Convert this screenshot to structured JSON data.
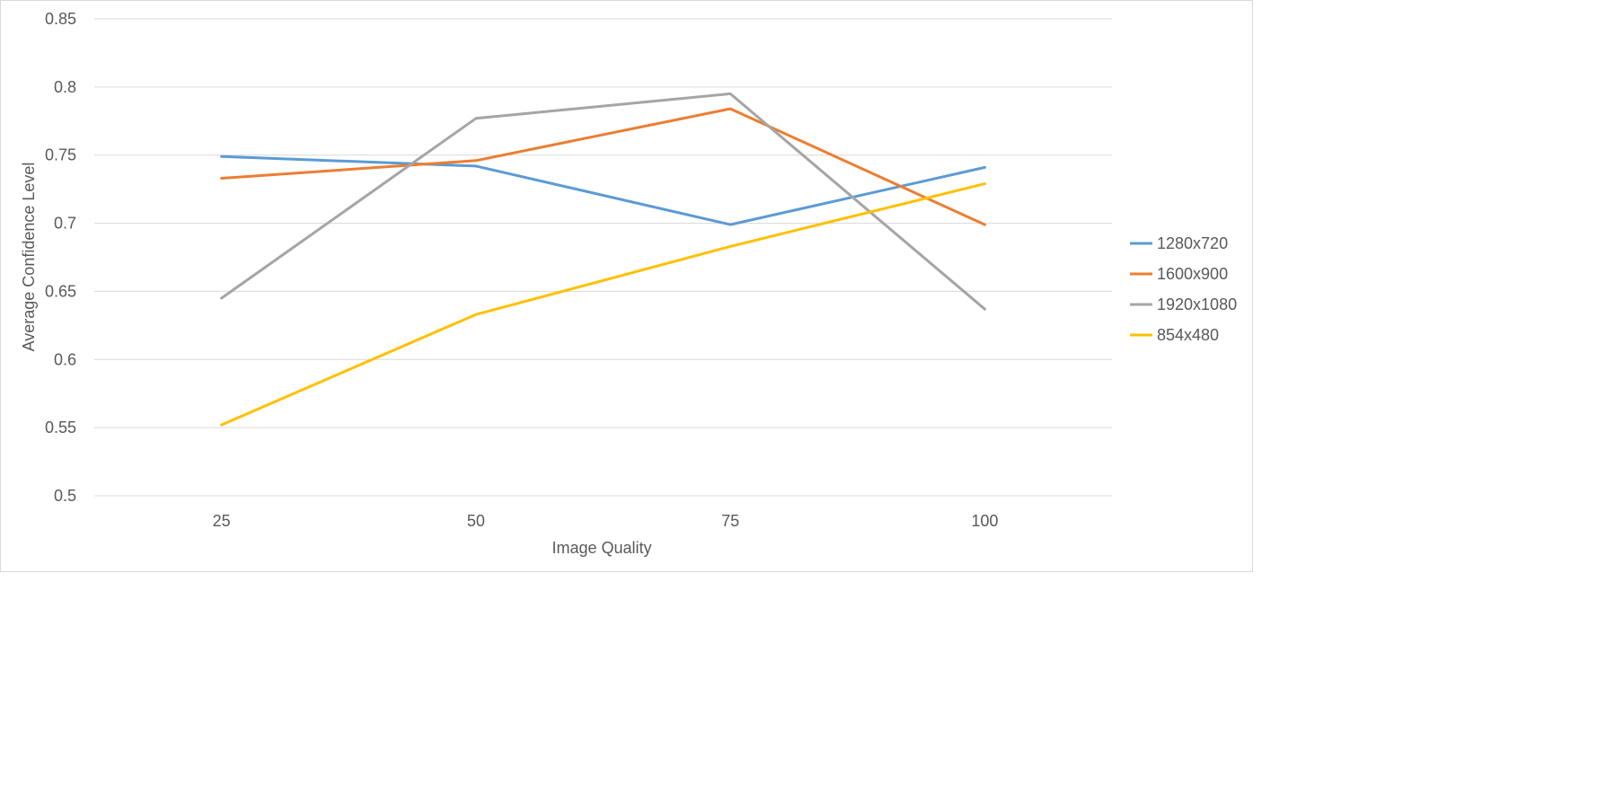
{
  "chart_data": {
    "type": "line",
    "title": "",
    "xlabel": "Image Quality",
    "ylabel": "Average Confidence Level",
    "categories": [
      "25",
      "50",
      "75",
      "100"
    ],
    "ylim": [
      0.5,
      0.85
    ],
    "yticks": [
      "0.5",
      "0.55",
      "0.6",
      "0.65",
      "0.7",
      "0.75",
      "0.8",
      "0.85"
    ],
    "grid": true,
    "legend_position": "right",
    "series": [
      {
        "name": "1280x720",
        "color": "#5b9bd5",
        "values": [
          0.749,
          0.742,
          0.699,
          0.741
        ]
      },
      {
        "name": "1600x900",
        "color": "#ed7d31",
        "values": [
          0.733,
          0.746,
          0.784,
          0.699
        ]
      },
      {
        "name": "1920x1080",
        "color": "#a5a5a5",
        "values": [
          0.645,
          0.777,
          0.795,
          0.637
        ]
      },
      {
        "name": "854x480",
        "color": "#ffc000",
        "values": [
          0.552,
          0.633,
          0.683,
          0.729
        ]
      }
    ]
  }
}
